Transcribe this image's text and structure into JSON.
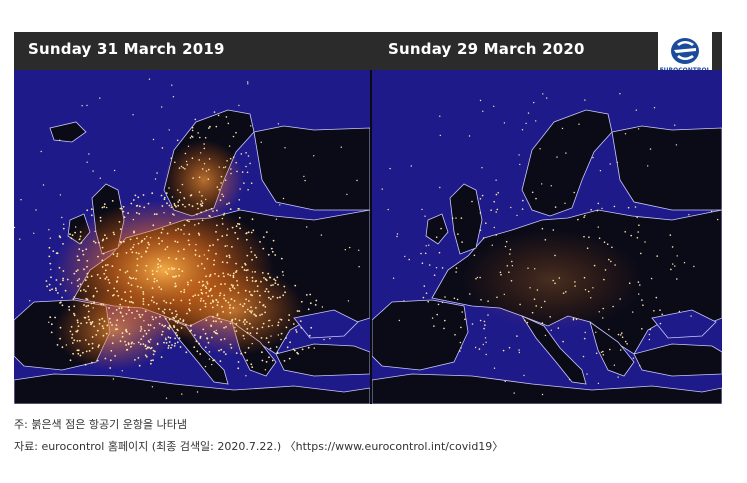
{
  "panels": {
    "left_title": "Sunday 31 March 2019",
    "right_title": "Sunday 29 March 2020"
  },
  "logo": {
    "text": "EUROCONTROL",
    "icon": "eurocontrol-logo"
  },
  "captions": {
    "note": "주: 붉은색 점은 항공기 운항을 나타냄",
    "source": "자료: eurocontrol 홈페이지 (최종 검색일: 2020.7.22.) 〈https://www.eurocontrol.int/covid19〉"
  },
  "colors": {
    "sea": "#1f1a8a",
    "land": "#0b0b18",
    "flight_dot": "#ffd27a",
    "glow": "#ff8a1a",
    "header": "#2b2b2b"
  }
}
